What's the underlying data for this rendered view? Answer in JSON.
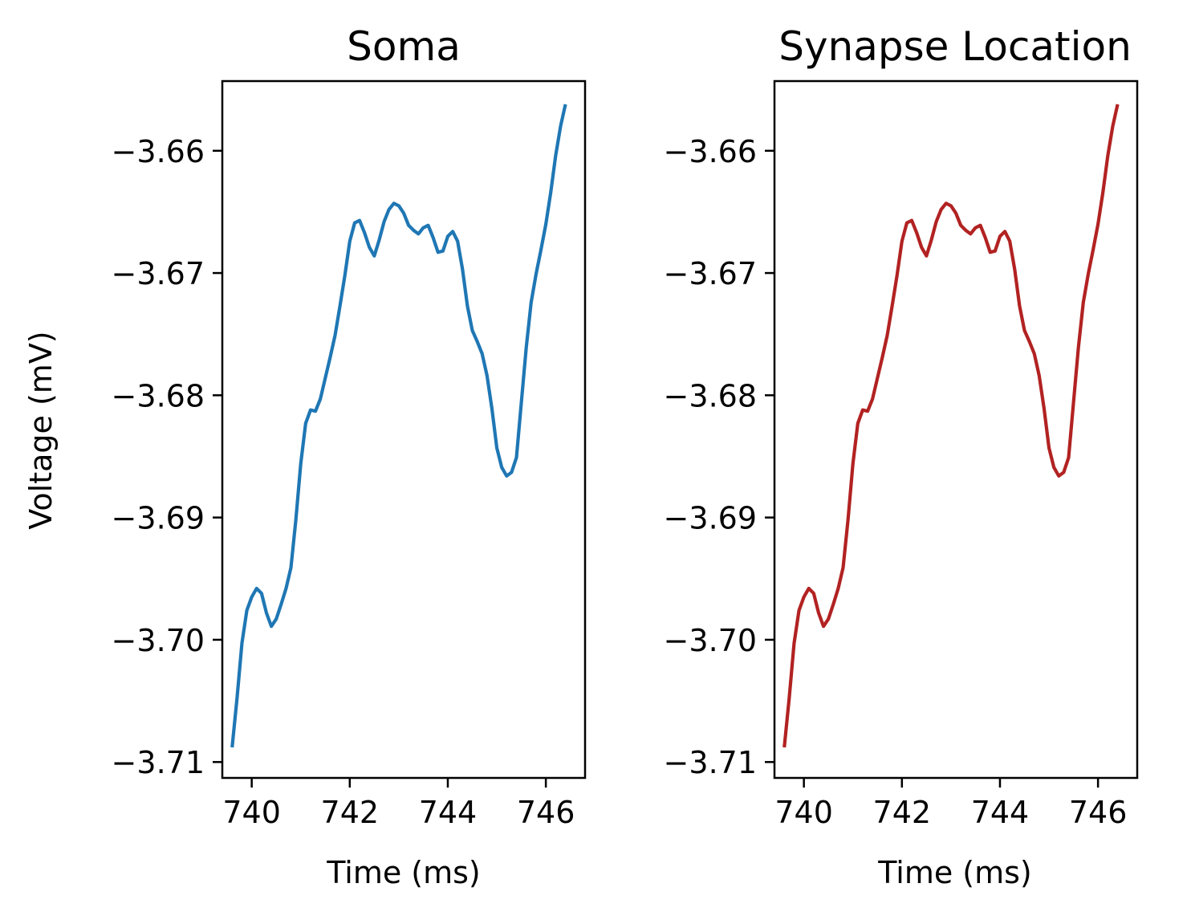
{
  "chart_data": [
    {
      "type": "line",
      "title": "Soma",
      "xlabel": "Time (ms)",
      "ylabel": "Voltage (mV)",
      "xlim": [
        739.4,
        746.8
      ],
      "ylim": [
        -3.7113,
        -3.6543
      ],
      "xticks": [
        740,
        742,
        744,
        746
      ],
      "xtick_labels": [
        "740",
        "742",
        "744",
        "746"
      ],
      "yticks": [
        -3.71,
        -3.7,
        -3.69,
        -3.68,
        -3.67,
        -3.66
      ],
      "ytick_labels": [
        "−3.71",
        "−3.70",
        "−3.69",
        "−3.68",
        "−3.67",
        "−3.66"
      ],
      "grid": false,
      "color": "#1f77b4",
      "series": [
        {
          "x": [
            739.6,
            739.7,
            739.8,
            739.9,
            740.0,
            740.1,
            740.2,
            740.3,
            740.4,
            740.5,
            740.6,
            740.7,
            740.8,
            740.9,
            741.0,
            741.1,
            741.2,
            741.3,
            741.4,
            741.5,
            741.6,
            741.7,
            741.8,
            741.9,
            742.0,
            742.1,
            742.2,
            742.3,
            742.4,
            742.5,
            742.6,
            742.7,
            742.8,
            742.9,
            743.0,
            743.1,
            743.2,
            743.3,
            743.4,
            743.5,
            743.6,
            743.7,
            743.8,
            743.9,
            744.0,
            744.1,
            744.2,
            744.3,
            744.4,
            744.5,
            744.6,
            744.7,
            744.8,
            744.9,
            745.0,
            745.1,
            745.2,
            745.3,
            745.4,
            745.5,
            745.6,
            745.7,
            745.8,
            745.9,
            746.0,
            746.1,
            746.2,
            746.3,
            746.4
          ],
          "y": [
            -3.7088,
            -3.7048,
            -3.7003,
            -3.6976,
            -3.6965,
            -3.6958,
            -3.6962,
            -3.6978,
            -3.6989,
            -3.6983,
            -3.6971,
            -3.6958,
            -3.6941,
            -3.6902,
            -3.6856,
            -3.6823,
            -3.6812,
            -3.6813,
            -3.6803,
            -3.6786,
            -3.6769,
            -3.6751,
            -3.6727,
            -3.6702,
            -3.6674,
            -3.6659,
            -3.6657,
            -3.6667,
            -3.6679,
            -3.6686,
            -3.6673,
            -3.6658,
            -3.6648,
            -3.6643,
            -3.6645,
            -3.6651,
            -3.6661,
            -3.6665,
            -3.6668,
            -3.6663,
            -3.6661,
            -3.6671,
            -3.6683,
            -3.6682,
            -3.667,
            -3.6666,
            -3.6674,
            -3.6697,
            -3.6727,
            -3.6747,
            -3.6756,
            -3.6766,
            -3.6784,
            -3.6811,
            -3.6843,
            -3.6859,
            -3.6866,
            -3.6863,
            -3.6851,
            -3.6806,
            -3.6761,
            -3.6724,
            -3.6701,
            -3.6681,
            -3.666,
            -3.6634,
            -3.6604,
            -3.658,
            -3.6562
          ]
        }
      ]
    },
    {
      "type": "line",
      "title": "Synapse Location",
      "xlabel": "Time (ms)",
      "ylabel": "",
      "xlim": [
        739.4,
        746.8
      ],
      "ylim": [
        -3.7113,
        -3.6543
      ],
      "xticks": [
        740,
        742,
        744,
        746
      ],
      "xtick_labels": [
        "740",
        "742",
        "744",
        "746"
      ],
      "yticks": [
        -3.71,
        -3.7,
        -3.69,
        -3.68,
        -3.67,
        -3.66
      ],
      "ytick_labels": [
        "−3.71",
        "−3.70",
        "−3.69",
        "−3.68",
        "−3.67",
        "−3.66"
      ],
      "grid": false,
      "color": "#b22222",
      "series": [
        {
          "x": [
            739.6,
            739.7,
            739.8,
            739.9,
            740.0,
            740.1,
            740.2,
            740.3,
            740.4,
            740.5,
            740.6,
            740.7,
            740.8,
            740.9,
            741.0,
            741.1,
            741.2,
            741.3,
            741.4,
            741.5,
            741.6,
            741.7,
            741.8,
            741.9,
            742.0,
            742.1,
            742.2,
            742.3,
            742.4,
            742.5,
            742.6,
            742.7,
            742.8,
            742.9,
            743.0,
            743.1,
            743.2,
            743.3,
            743.4,
            743.5,
            743.6,
            743.7,
            743.8,
            743.9,
            744.0,
            744.1,
            744.2,
            744.3,
            744.4,
            744.5,
            744.6,
            744.7,
            744.8,
            744.9,
            745.0,
            745.1,
            745.2,
            745.3,
            745.4,
            745.5,
            745.6,
            745.7,
            745.8,
            745.9,
            746.0,
            746.1,
            746.2,
            746.3,
            746.4
          ],
          "y": [
            -3.7088,
            -3.7048,
            -3.7003,
            -3.6976,
            -3.6965,
            -3.6958,
            -3.6962,
            -3.6978,
            -3.6989,
            -3.6983,
            -3.6971,
            -3.6958,
            -3.6941,
            -3.6902,
            -3.6856,
            -3.6823,
            -3.6812,
            -3.6813,
            -3.6803,
            -3.6786,
            -3.6769,
            -3.6751,
            -3.6727,
            -3.6702,
            -3.6674,
            -3.6659,
            -3.6657,
            -3.6667,
            -3.6679,
            -3.6686,
            -3.6673,
            -3.6658,
            -3.6648,
            -3.6643,
            -3.6645,
            -3.6651,
            -3.6661,
            -3.6665,
            -3.6668,
            -3.6663,
            -3.6661,
            -3.6671,
            -3.6683,
            -3.6682,
            -3.667,
            -3.6666,
            -3.6674,
            -3.6697,
            -3.6727,
            -3.6747,
            -3.6756,
            -3.6766,
            -3.6784,
            -3.6811,
            -3.6843,
            -3.6859,
            -3.6866,
            -3.6863,
            -3.6851,
            -3.6806,
            -3.6761,
            -3.6724,
            -3.6701,
            -3.6681,
            -3.666,
            -3.6634,
            -3.6604,
            -3.658,
            -3.6562
          ]
        }
      ]
    }
  ]
}
